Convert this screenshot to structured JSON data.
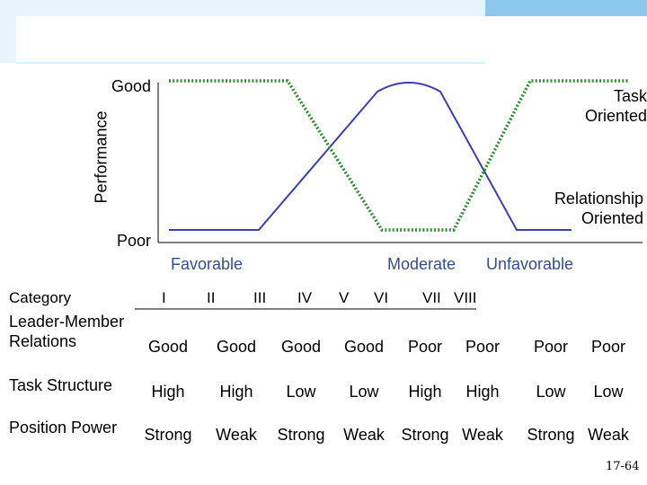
{
  "chart_data": {
    "type": "line",
    "ylabel": "Performance",
    "y_ticks": [
      "Good",
      "Poor"
    ],
    "x_labels": [
      "Favorable",
      "Moderate",
      "Unfavorable"
    ],
    "series": [
      {
        "name": "Task Oriented",
        "style": "solid",
        "color": "#3b3fb0",
        "levels": [
          "Good",
          "Good",
          "Good",
          "Poor",
          "Poor",
          "Poor",
          "Good",
          "Good"
        ]
      },
      {
        "name": "Relationship Oriented",
        "style": "dotted",
        "color": "#2e8b2e",
        "levels": [
          "Poor",
          "Poor",
          "Poor",
          "Good",
          "Good",
          "Good",
          "Poor",
          "Poor"
        ]
      }
    ]
  },
  "table": {
    "header": "Category",
    "octants": [
      "I",
      "II",
      "III",
      "IV",
      "V",
      "VI",
      "VII",
      "VIII"
    ],
    "rows": [
      {
        "label_line1": "Leader-Member",
        "label_line2": "Relations",
        "cells": [
          "Good",
          "Good",
          "Good",
          "Good",
          "Poor",
          "Poor",
          "Poor",
          "Poor"
        ]
      },
      {
        "label_line1": "Task Structure",
        "cells": [
          "High",
          "High",
          "Low",
          "Low",
          "High",
          "High",
          "Low",
          "Low"
        ]
      },
      {
        "label_line1": "Position Power",
        "cells": [
          "Strong",
          "Weak",
          "Strong",
          "Weak",
          "Strong",
          "Weak",
          "Strong",
          "Weak"
        ]
      }
    ]
  },
  "slide_number": "17-64",
  "colors": {
    "accent_blue": "#2e4f8f",
    "task_line": "#3b3fb0",
    "relationship_line": "#2e8b2e",
    "corner_decor": "#7fbfe6"
  }
}
